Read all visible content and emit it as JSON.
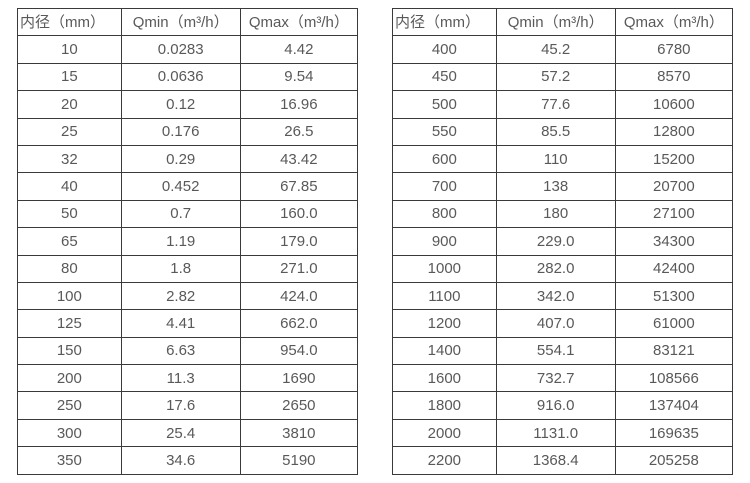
{
  "colors": {
    "background": "#ffffff",
    "text": "#595959",
    "border": "#3a3a3a"
  },
  "tables": [
    {
      "name": "flow-table-small-diameters",
      "headers": [
        "内径（mm）",
        "Qmin（m³/h）",
        "Qmax（m³/h）"
      ],
      "rows": [
        [
          "10",
          "0.0283",
          "4.42"
        ],
        [
          "15",
          "0.0636",
          "9.54"
        ],
        [
          "20",
          "0.12",
          "16.96"
        ],
        [
          "25",
          "0.176",
          "26.5"
        ],
        [
          "32",
          "0.29",
          "43.42"
        ],
        [
          "40",
          "0.452",
          "67.85"
        ],
        [
          "50",
          "0.7",
          "160.0"
        ],
        [
          "65",
          "1.19",
          "179.0"
        ],
        [
          "80",
          "1.8",
          "271.0"
        ],
        [
          "100",
          "2.82",
          "424.0"
        ],
        [
          "125",
          "4.41",
          "662.0"
        ],
        [
          "150",
          "6.63",
          "954.0"
        ],
        [
          "200",
          "11.3",
          "1690"
        ],
        [
          "250",
          "17.6",
          "2650"
        ],
        [
          "300",
          "25.4",
          "3810"
        ],
        [
          "350",
          "34.6",
          "5190"
        ]
      ]
    },
    {
      "name": "flow-table-large-diameters",
      "headers": [
        "内径（mm）",
        "Qmin（m³/h）",
        "Qmax（m³/h）"
      ],
      "rows": [
        [
          "400",
          "45.2",
          "6780"
        ],
        [
          "450",
          "57.2",
          "8570"
        ],
        [
          "500",
          "77.6",
          "10600"
        ],
        [
          "550",
          "85.5",
          "12800"
        ],
        [
          "600",
          "110",
          "15200"
        ],
        [
          "700",
          "138",
          "20700"
        ],
        [
          "800",
          "180",
          "27100"
        ],
        [
          "900",
          "229.0",
          "34300"
        ],
        [
          "1000",
          "282.0",
          "42400"
        ],
        [
          "1100",
          "342.0",
          "51300"
        ],
        [
          "1200",
          "407.0",
          "61000"
        ],
        [
          "1400",
          "554.1",
          "83121"
        ],
        [
          "1600",
          "732.7",
          "108566"
        ],
        [
          "1800",
          "916.0",
          "137404"
        ],
        [
          "2000",
          "1131.0",
          "169635"
        ],
        [
          "2200",
          "1368.4",
          "205258"
        ]
      ]
    }
  ]
}
